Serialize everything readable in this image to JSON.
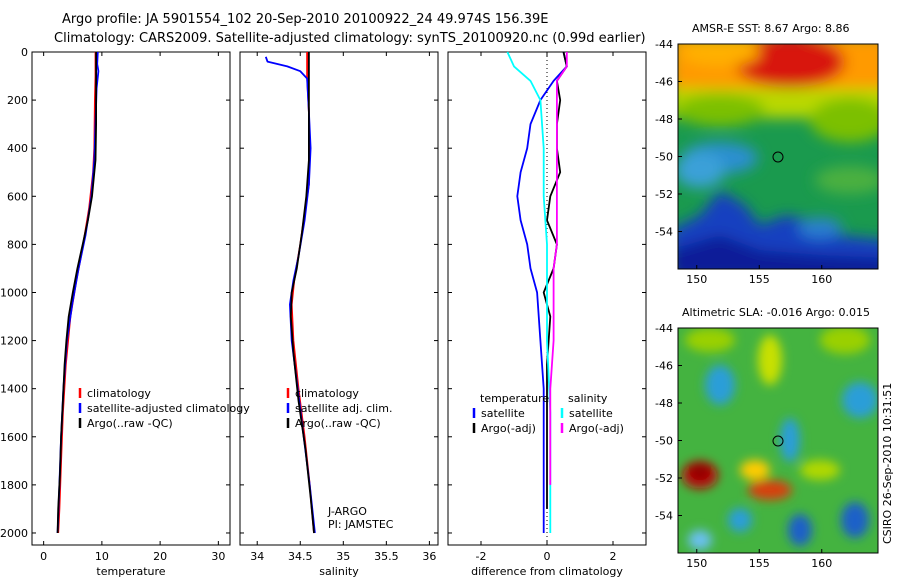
{
  "header": {
    "line1": "Argo profile: JA 5901554_102 20-Sep-2010 20100922_24 49.974S 156.39E",
    "line2": "Climatology: CARS2009. Satellite-adjusted climatology: synTS_20100920.nc (0.99d earlier)"
  },
  "credit": "CSIRO 26-Sep-2010 10:31:51",
  "colors": {
    "red": "#ff0000",
    "blue": "#0000ff",
    "black": "#000000",
    "cyan": "#00ffff",
    "magenta": "#ff00ff"
  },
  "chart_data": [
    {
      "type": "line",
      "id": "temperature",
      "xlabel": "temperature",
      "ylabel": "",
      "xlim": [
        -2,
        32
      ],
      "ylim": [
        2050,
        0
      ],
      "xticks": [
        0,
        10,
        20,
        30
      ],
      "yticks": [
        0,
        200,
        400,
        600,
        800,
        1000,
        1200,
        1400,
        1600,
        1800,
        2000
      ],
      "legend": [
        "climatology",
        "satellite-adjusted climatology",
        "Argo(..raw -QC)"
      ],
      "series": [
        {
          "name": "climatology",
          "color": "red",
          "points": [
            [
              8.9,
              0
            ],
            [
              8.9,
              100
            ],
            [
              8.8,
              200
            ],
            [
              8.7,
              400
            ],
            [
              8.5,
              500
            ],
            [
              7.8,
              650
            ],
            [
              6.8,
              800
            ],
            [
              5.6,
              950
            ],
            [
              4.6,
              1100
            ],
            [
              3.8,
              1300
            ],
            [
              3.3,
              1500
            ],
            [
              3.0,
              1700
            ],
            [
              2.7,
              1900
            ],
            [
              2.5,
              2000
            ]
          ]
        },
        {
          "name": "satellite-adjusted climatology",
          "color": "blue",
          "points": [
            [
              9.3,
              0
            ],
            [
              9.2,
              50
            ],
            [
              9.4,
              80
            ],
            [
              9.1,
              150
            ],
            [
              8.9,
              300
            ],
            [
              8.7,
              450
            ],
            [
              8.2,
              600
            ],
            [
              7.2,
              760
            ],
            [
              6.0,
              900
            ],
            [
              4.9,
              1050
            ],
            [
              4.0,
              1200
            ],
            [
              3.4,
              1400
            ],
            [
              3.0,
              1600
            ],
            [
              2.7,
              1800
            ],
            [
              2.4,
              2000
            ]
          ]
        },
        {
          "name": "Argo(..raw -QC)",
          "color": "black",
          "points": [
            [
              9.0,
              0
            ],
            [
              9.0,
              150
            ],
            [
              9.0,
              300
            ],
            [
              8.9,
              450
            ],
            [
              8.3,
              600
            ],
            [
              7.6,
              700
            ],
            [
              6.7,
              800
            ],
            [
              5.8,
              900
            ],
            [
              5.0,
              1000
            ],
            [
              4.3,
              1100
            ],
            [
              3.9,
              1200
            ],
            [
              3.6,
              1300
            ],
            [
              3.3,
              1450
            ],
            [
              3.0,
              1600
            ],
            [
              2.8,
              1750
            ],
            [
              2.5,
              1900
            ],
            [
              2.4,
              2000
            ]
          ]
        }
      ]
    },
    {
      "type": "line",
      "id": "salinity",
      "xlabel": "salinity",
      "ylabel": "",
      "xlim": [
        33.8,
        36.1
      ],
      "ylim": [
        2050,
        0
      ],
      "xticks": [
        34,
        34.5,
        35,
        35.5,
        36
      ],
      "xtick_labels": [
        "34",
        "34.5",
        "35",
        "35.5",
        "36"
      ],
      "yticks": [
        0,
        200,
        400,
        600,
        800,
        1000,
        1200,
        1400,
        1600,
        1800,
        2000
      ],
      "legend": [
        "climatology",
        "satellite adj. clim.",
        "Argo(..raw -QC)"
      ],
      "annotation": [
        "J-ARGO",
        "PI: JAMSTEC"
      ],
      "series": [
        {
          "name": "climatology",
          "color": "red",
          "points": [
            [
              34.58,
              0
            ],
            [
              34.58,
              100
            ],
            [
              34.6,
              250
            ],
            [
              34.61,
              400
            ],
            [
              34.6,
              550
            ],
            [
              34.56,
              650
            ],
            [
              34.5,
              800
            ],
            [
              34.43,
              950
            ],
            [
              34.4,
              1050
            ],
            [
              34.42,
              1200
            ],
            [
              34.48,
              1400
            ],
            [
              34.55,
              1600
            ],
            [
              34.61,
              1800
            ],
            [
              34.66,
              2000
            ]
          ]
        },
        {
          "name": "satellite adj. clim.",
          "color": "blue",
          "points": [
            [
              34.1,
              20
            ],
            [
              34.12,
              40
            ],
            [
              34.35,
              60
            ],
            [
              34.5,
              80
            ],
            [
              34.58,
              110
            ],
            [
              34.6,
              250
            ],
            [
              34.62,
              400
            ],
            [
              34.6,
              550
            ],
            [
              34.55,
              700
            ],
            [
              34.48,
              850
            ],
            [
              34.42,
              950
            ],
            [
              34.38,
              1050
            ],
            [
              34.4,
              1200
            ],
            [
              34.47,
              1400
            ],
            [
              34.54,
              1600
            ],
            [
              34.61,
              1800
            ],
            [
              34.67,
              2000
            ]
          ]
        },
        {
          "name": "Argo(..raw -QC)",
          "color": "black",
          "points": [
            [
              34.6,
              0
            ],
            [
              34.6,
              100
            ],
            [
              34.6,
              250
            ],
            [
              34.6,
              450
            ],
            [
              34.57,
              600
            ],
            [
              34.52,
              750
            ],
            [
              34.46,
              900
            ],
            [
              34.4,
              1000
            ],
            [
              34.39,
              1100
            ],
            [
              34.42,
              1250
            ],
            [
              34.48,
              1450
            ],
            [
              34.56,
              1650
            ],
            [
              34.62,
              1850
            ],
            [
              34.66,
              2000
            ]
          ]
        }
      ]
    },
    {
      "type": "line",
      "id": "difference",
      "xlabel": "difference from climatology",
      "ylabel": "",
      "xlim": [
        -3,
        3
      ],
      "ylim": [
        2050,
        0
      ],
      "xticks": [
        -2,
        0,
        2
      ],
      "yticks": [
        0,
        200,
        400,
        600,
        800,
        1000,
        1200,
        1400,
        1600,
        1800,
        2000
      ],
      "legend_groups": [
        {
          "title": "temperature",
          "entries": [
            "satellite",
            "Argo(-adj)"
          ]
        },
        {
          "title": "salinity",
          "entries": [
            "satellite",
            "Argo(-adj)"
          ]
        }
      ],
      "series": [
        {
          "name": "temperature satellite",
          "color": "blue",
          "points": [
            [
              0.5,
              0
            ],
            [
              0.6,
              60
            ],
            [
              0.2,
              120
            ],
            [
              -0.2,
              200
            ],
            [
              -0.5,
              300
            ],
            [
              -0.6,
              400
            ],
            [
              -0.8,
              500
            ],
            [
              -0.9,
              600
            ],
            [
              -0.8,
              700
            ],
            [
              -0.6,
              800
            ],
            [
              -0.5,
              900
            ],
            [
              -0.3,
              1000
            ],
            [
              -0.2,
              1200
            ],
            [
              -0.1,
              1400
            ],
            [
              -0.1,
              1700
            ],
            [
              -0.1,
              2000
            ]
          ]
        },
        {
          "name": "temperature Argo(-adj)",
          "color": "black",
          "points": [
            [
              0.5,
              0
            ],
            [
              0.6,
              60
            ],
            [
              0.3,
              120
            ],
            [
              0.4,
              200
            ],
            [
              0.3,
              300
            ],
            [
              0.3,
              400
            ],
            [
              0.4,
              500
            ],
            [
              0.1,
              600
            ],
            [
              0.0,
              700
            ],
            [
              0.3,
              800
            ],
            [
              0.2,
              900
            ],
            [
              -0.1,
              1000
            ],
            [
              0.1,
              1100
            ],
            [
              0.0,
              1300
            ],
            [
              0.0,
              1600
            ],
            [
              0.0,
              1900
            ]
          ]
        },
        {
          "name": "salinity satellite",
          "color": "cyan",
          "points": [
            [
              -1.2,
              0
            ],
            [
              -1.0,
              60
            ],
            [
              -0.5,
              120
            ],
            [
              -0.2,
              200
            ],
            [
              -0.1,
              400
            ],
            [
              -0.1,
              600
            ],
            [
              0.0,
              800
            ],
            [
              0.0,
              1000
            ],
            [
              0.0,
              1200
            ],
            [
              0.1,
              1500
            ],
            [
              0.1,
              1800
            ],
            [
              0.1,
              2000
            ]
          ]
        },
        {
          "name": "salinity Argo(-adj)",
          "color": "magenta",
          "points": [
            [
              0.6,
              0
            ],
            [
              0.6,
              60
            ],
            [
              0.3,
              120
            ],
            [
              0.3,
              700
            ],
            [
              0.3,
              800
            ],
            [
              0.2,
              900
            ],
            [
              0.2,
              1000
            ],
            [
              0.2,
              1200
            ],
            [
              0.1,
              1400
            ],
            [
              0.1,
              1600
            ],
            [
              0.1,
              1800
            ]
          ]
        }
      ]
    },
    {
      "type": "heatmap",
      "id": "sst-map",
      "title": "AMSR-E SST: 8.67 Argo: 8.86",
      "xlim": [
        148.5,
        164.5
      ],
      "ylim": [
        -56,
        -44
      ],
      "xticks": [
        150,
        155,
        160
      ],
      "yticks": [
        -44,
        -46,
        -48,
        -50,
        -52,
        -54
      ],
      "marker": {
        "lon": 156.39,
        "lat": -49.974
      }
    },
    {
      "type": "heatmap",
      "id": "sla-map",
      "title": "Altimetric SLA: -0.016 Argo: 0.015",
      "xlim": [
        148.5,
        164.5
      ],
      "ylim": [
        -56,
        -44
      ],
      "xticks": [
        150,
        155,
        160
      ],
      "yticks": [
        -44,
        -46,
        -48,
        -50,
        -52,
        -54
      ],
      "marker": {
        "lon": 156.39,
        "lat": -49.974
      }
    }
  ]
}
